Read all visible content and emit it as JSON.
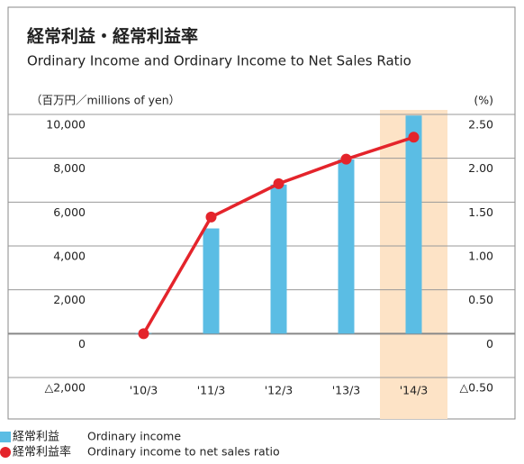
{
  "chart_data": {
    "type": "bar_line",
    "title": "経常利益・経常利益率",
    "subtitle": "Ordinary Income and Ordinary Income to Net Sales Ratio",
    "y_label": "（百万円／millions of yen）",
    "y2_label": "(%)",
    "categories": [
      "'10/3",
      "'11/3",
      "'12/3",
      "'13/3",
      "'14/3"
    ],
    "series": [
      {
        "name": "経常利益",
        "description": "Ordinary income",
        "type": "bar",
        "color": "#5bbde4",
        "values": [
          30,
          4800,
          6800,
          7950,
          9950
        ]
      },
      {
        "name": "経常利益率",
        "description": "Ordinary income to net sales ratio",
        "type": "line",
        "axis": "y2",
        "color": "#e4242b",
        "values": [
          0,
          1.33,
          1.71,
          1.99,
          2.24
        ]
      }
    ],
    "ylim": [
      -2000,
      10000
    ],
    "yticks": [
      {
        "value": -2000,
        "label": "△2,000"
      },
      0,
      {
        "value": 2000,
        "label": "2,000"
      },
      {
        "value": 4000,
        "label": "4,000"
      },
      {
        "value": 6000,
        "label": "6,000"
      },
      {
        "value": 8000,
        "label": "8,000"
      },
      {
        "value": 10000,
        "label": "10,000"
      }
    ],
    "y2lim": [
      -0.5,
      2.5
    ],
    "y2ticks": [
      {
        "value": -0.5,
        "label": "△0.50"
      },
      0,
      {
        "value": 0.5,
        "label": "0.50"
      },
      {
        "value": 1.0,
        "label": "1.00"
      },
      {
        "value": 1.5,
        "label": "1.50"
      },
      {
        "value": 2.0,
        "label": "2.00"
      },
      {
        "value": 2.5,
        "label": "2.50"
      }
    ],
    "grid": true,
    "highlight": {
      "index": 4,
      "color": "#fde3c6"
    }
  }
}
